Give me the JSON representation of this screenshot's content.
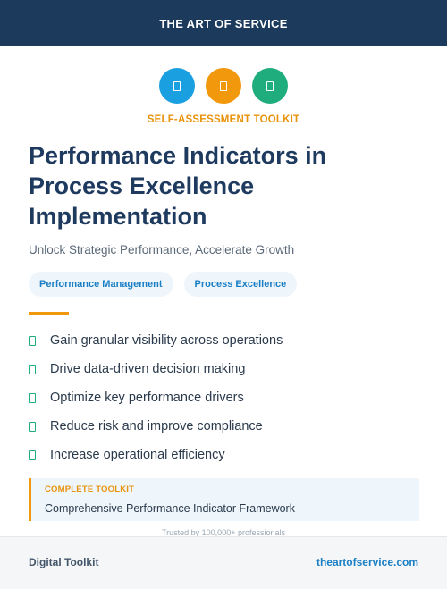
{
  "header": {
    "brand": "THE ART OF SERVICE"
  },
  "icons": [
    {
      "name": "blue-badge-icon",
      "color": "#1a9fe0"
    },
    {
      "name": "orange-badge-icon",
      "color": "#f2980d"
    },
    {
      "name": "green-badge-icon",
      "color": "#20ad7d"
    }
  ],
  "kicker": "SELF-ASSESSMENT TOOLKIT",
  "title": "Performance Indicators in Process Excellence Implementation",
  "subtitle": "Unlock Strategic Performance, Accelerate Growth",
  "tags": [
    "Performance Management",
    "Process Excellence"
  ],
  "features": [
    "Gain granular visibility across operations",
    "Drive data-driven decision making",
    "Optimize key performance drivers",
    "Reduce risk and improve compliance",
    "Increase operational efficiency"
  ],
  "callout": {
    "label": "COMPLETE TOOLKIT",
    "text": "Comprehensive Performance Indicator Framework"
  },
  "trusted": "Trusted by 100,000+ professionals",
  "footer": {
    "left": "Digital Toolkit",
    "right": "theartofservice.com"
  },
  "colors": {
    "navy": "#1b3a5c",
    "accent_orange": "#f2980d",
    "accent_blue": "#1a7fc4",
    "accent_green": "#20ad7d"
  }
}
